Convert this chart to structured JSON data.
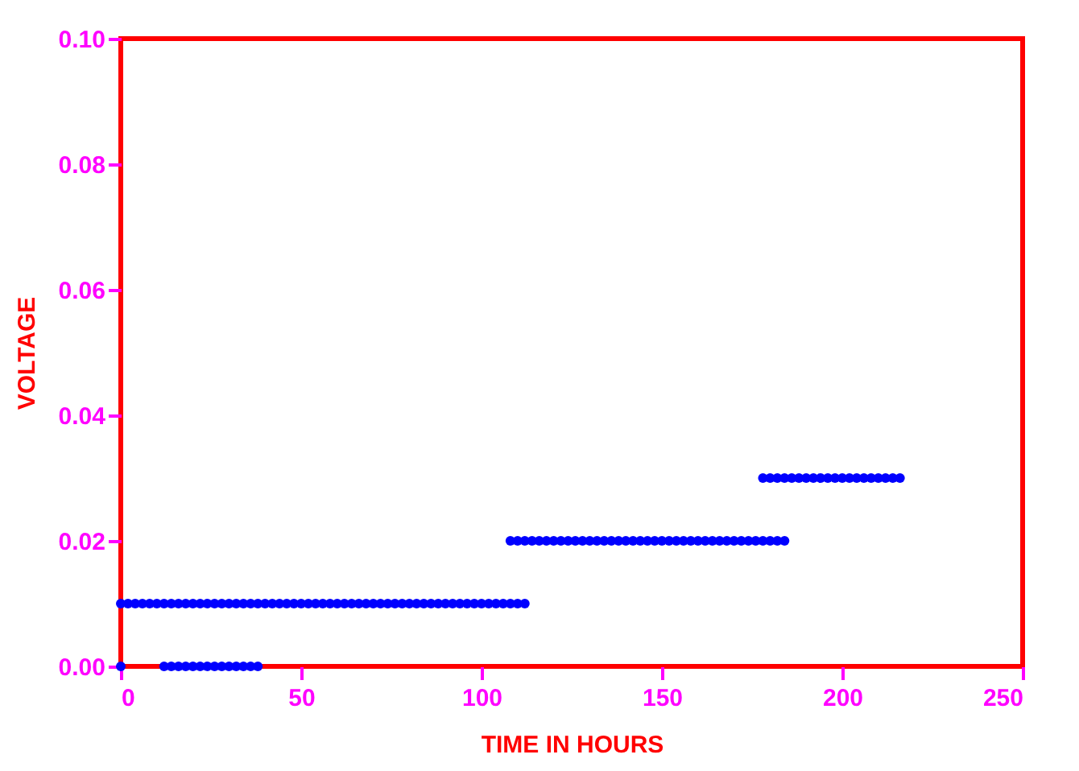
{
  "chart_data": {
    "type": "scatter",
    "xlabel": "TIME IN HOURS",
    "ylabel": "VOLTAGE",
    "xlim": [
      0,
      250
    ],
    "xticks": [
      0,
      50,
      100,
      150,
      200,
      250
    ],
    "ylim": [
      0,
      0.1
    ],
    "yticks": [
      {
        "value": 0,
        "label": "0.00"
      },
      {
        "value": 0.02,
        "label": "0.02"
      },
      {
        "value": 0.04,
        "label": "0.04"
      },
      {
        "value": 0.06,
        "label": "0.06"
      },
      {
        "value": 0.08,
        "label": "0.08"
      },
      {
        "value": 0.1,
        "label": "0.10"
      }
    ],
    "marker": "circle",
    "series": [
      {
        "color": "#0000ff",
        "x": [
          0,
          2,
          4,
          6,
          8,
          10,
          12,
          14,
          16,
          18,
          20
        ],
        "values": [
          0.01,
          0.01,
          0.01,
          0.01,
          0.01,
          0.01,
          0.01,
          0.01,
          0.01,
          0.01,
          0.01
        ]
      },
      {
        "color": "#0000ff",
        "x": [
          22,
          24,
          26,
          28,
          30,
          32,
          34,
          36,
          38,
          40,
          42,
          44,
          46,
          48,
          50,
          52,
          54,
          56,
          58,
          60,
          62,
          64,
          66,
          68,
          70,
          72,
          74,
          76,
          78,
          80,
          82,
          84,
          86,
          88,
          90,
          92,
          94,
          96,
          98,
          100,
          102,
          104,
          106,
          108,
          110,
          112
        ],
        "values": [
          0.01,
          0.01,
          0.01,
          0.01,
          0.01,
          0.01,
          0.01,
          0.01,
          0.01,
          0.01,
          0.01,
          0.01,
          0.01,
          0.01,
          0.01,
          0.01,
          0.01,
          0.01,
          0.01,
          0.01,
          0.01,
          0.01,
          0.01,
          0.01,
          0.01,
          0.01,
          0.01,
          0.01,
          0.01,
          0.01,
          0.01,
          0.01,
          0.01,
          0.01,
          0.01,
          0.01,
          0.01,
          0.01,
          0.01,
          0.01,
          0.01,
          0.01,
          0.01,
          0.01,
          0.01,
          0.01
        ]
      },
      {
        "color": "#0000ff",
        "x": [
          0,
          12,
          14,
          16,
          18,
          20,
          22,
          24,
          26,
          28,
          30,
          32,
          34,
          36,
          38
        ],
        "values": [
          0,
          0,
          0,
          0,
          0,
          0,
          0,
          0,
          0,
          0,
          0,
          0,
          0,
          0,
          0
        ]
      },
      {
        "color": "#0000ff",
        "x": [
          108,
          110,
          112,
          114,
          116,
          118,
          120,
          122,
          124,
          126,
          128,
          130,
          132,
          134,
          136,
          138,
          140,
          142,
          144,
          146,
          148,
          150,
          152,
          154,
          156,
          158,
          160,
          162,
          164,
          166,
          168,
          170,
          172,
          174,
          176,
          178,
          180,
          182,
          184
        ],
        "values": [
          0.02,
          0.02,
          0.02,
          0.02,
          0.02,
          0.02,
          0.02,
          0.02,
          0.02,
          0.02,
          0.02,
          0.02,
          0.02,
          0.02,
          0.02,
          0.02,
          0.02,
          0.02,
          0.02,
          0.02,
          0.02,
          0.02,
          0.02,
          0.02,
          0.02,
          0.02,
          0.02,
          0.02,
          0.02,
          0.02,
          0.02,
          0.02,
          0.02,
          0.02,
          0.02,
          0.02,
          0.02,
          0.02,
          0.02
        ]
      },
      {
        "color": "#0000ff",
        "x": [
          178,
          180,
          182,
          184,
          186,
          188,
          190,
          192,
          194,
          196,
          198,
          200,
          202,
          204,
          206,
          208,
          210,
          212,
          214,
          216
        ],
        "values": [
          0.03,
          0.03,
          0.03,
          0.03,
          0.03,
          0.03,
          0.03,
          0.03,
          0.03,
          0.03,
          0.03,
          0.03,
          0.03,
          0.03,
          0.03,
          0.03,
          0.03,
          0.03,
          0.03,
          0.03
        ]
      }
    ]
  }
}
